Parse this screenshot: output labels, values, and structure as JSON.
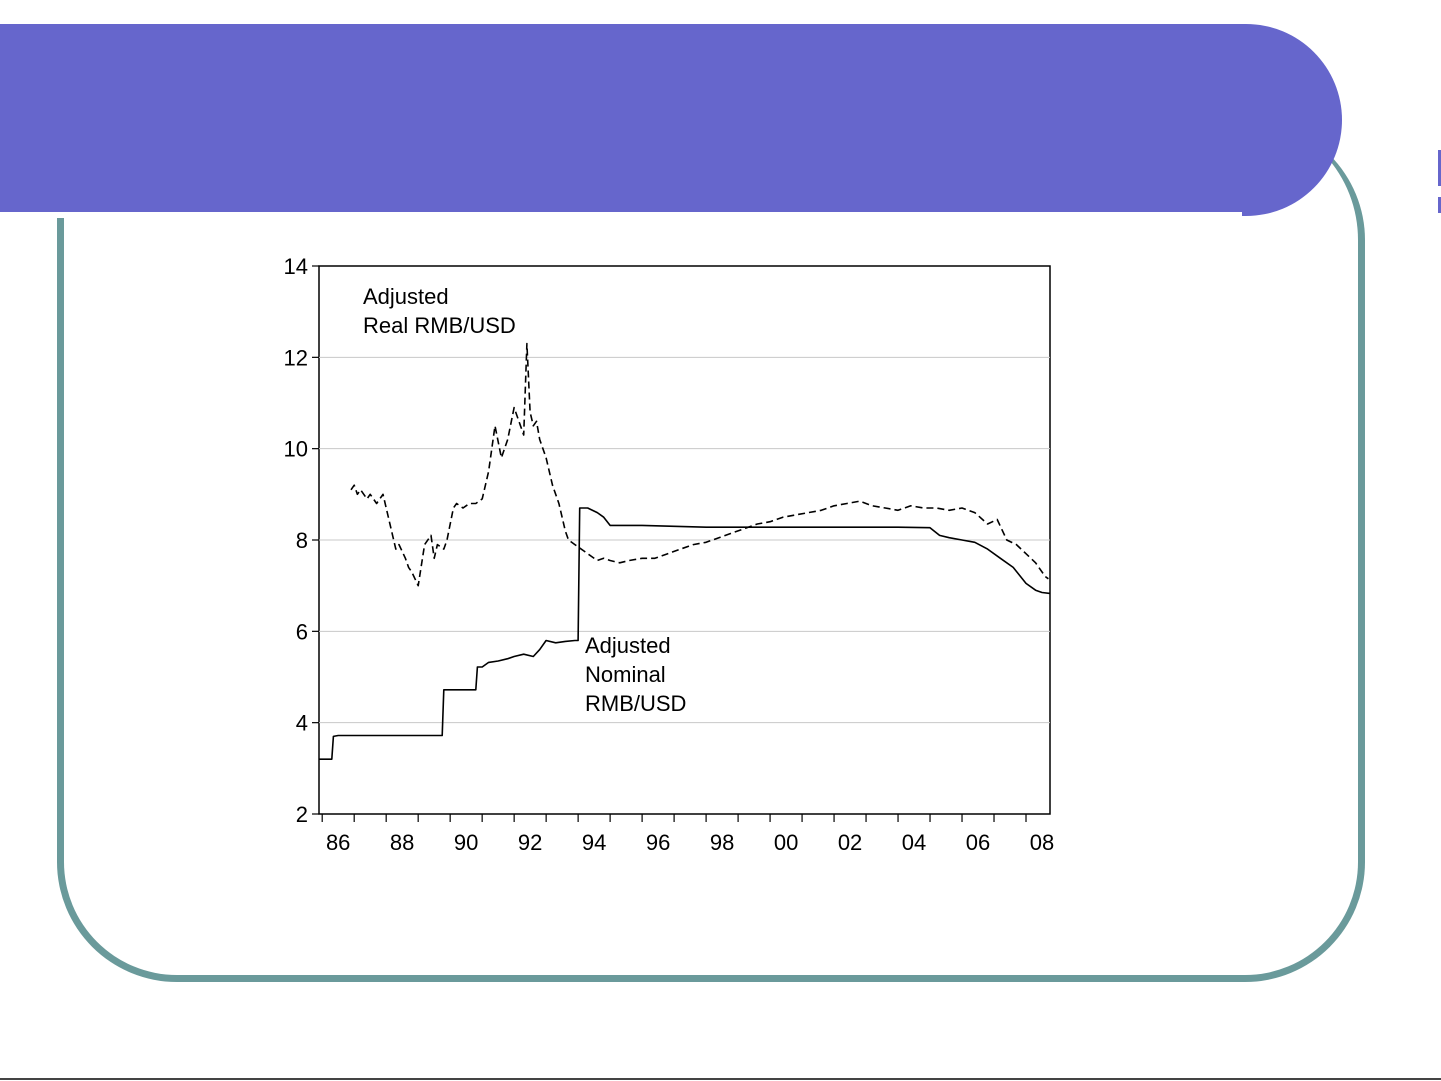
{
  "slide": {
    "banner_color": "#6666cc",
    "frame_color": "#6a9a9b"
  },
  "chart_data": {
    "type": "line",
    "ylim": [
      2,
      14
    ],
    "yticks": [
      "2",
      "4",
      "6",
      "8",
      "10",
      "12",
      "14"
    ],
    "xlim": [
      1985.9,
      2008.75
    ],
    "xticks": [
      {
        "label": "86",
        "year": 1986.5
      },
      {
        "label": "88",
        "year": 1988.5
      },
      {
        "label": "90",
        "year": 1990.5
      },
      {
        "label": "92",
        "year": 1992.5
      },
      {
        "label": "94",
        "year": 1994.5
      },
      {
        "label": "96",
        "year": 1996.5
      },
      {
        "label": "98",
        "year": 1998.5
      },
      {
        "label": "00",
        "year": 2000.5
      },
      {
        "label": "02",
        "year": 2002.5
      },
      {
        "label": "04",
        "year": 2004.5
      },
      {
        "label": "06",
        "year": 2006.5
      },
      {
        "label": "08",
        "year": 2008.5
      }
    ],
    "grid": true,
    "annotations": {
      "real_line1": "Adjusted",
      "real_line2": "Real RMB/USD",
      "nominal_line1": "Adjusted",
      "nominal_line2": "Nominal",
      "nominal_line3": "RMB/USD"
    },
    "series": [
      {
        "style": "dashed",
        "x": [
          1986.9,
          1987.0,
          1987.1,
          1987.2,
          1987.4,
          1987.5,
          1987.7,
          1987.9,
          1988.0,
          1988.2,
          1988.3,
          1988.4,
          1988.6,
          1988.7,
          1988.8,
          1989.0,
          1989.2,
          1989.4,
          1989.5,
          1989.6,
          1989.8,
          1989.9,
          1990.1,
          1990.2,
          1990.4,
          1990.6,
          1990.8,
          1991.0,
          1991.2,
          1991.4,
          1991.6,
          1991.8,
          1992.0,
          1992.2,
          1992.3,
          1992.4,
          1992.5,
          1992.6,
          1992.7,
          1992.8,
          1993.0,
          1993.2,
          1993.4,
          1993.5,
          1993.6,
          1993.7,
          1993.9,
          1994.0,
          1994.2,
          1994.4,
          1994.6,
          1994.8,
          1995.0,
          1995.3,
          1995.6,
          1996.0,
          1996.4,
          1996.8,
          1997.2,
          1997.6,
          1998.0,
          1998.4,
          1998.8,
          1999.2,
          1999.6,
          2000.0,
          2000.4,
          2000.8,
          2001.2,
          2001.6,
          2002.0,
          2002.4,
          2002.8,
          2003.2,
          2003.6,
          2004.0,
          2004.4,
          2004.8,
          2005.2,
          2005.6,
          2006.0,
          2006.4,
          2006.8,
          2007.1,
          2007.4,
          2007.7,
          2008.0,
          2008.3,
          2008.6,
          2008.7
        ],
        "y": [
          9.1,
          9.2,
          9.0,
          9.1,
          8.9,
          9.0,
          8.8,
          9.0,
          8.7,
          8.1,
          7.8,
          7.9,
          7.6,
          7.4,
          7.3,
          7.0,
          7.9,
          8.1,
          7.6,
          7.9,
          7.8,
          8.0,
          8.7,
          8.8,
          8.7,
          8.8,
          8.8,
          8.9,
          9.5,
          10.5,
          9.8,
          10.2,
          10.9,
          10.5,
          10.3,
          12.3,
          10.8,
          10.5,
          10.6,
          10.2,
          9.8,
          9.2,
          8.8,
          8.5,
          8.2,
          8.0,
          7.9,
          7.85,
          7.75,
          7.65,
          7.55,
          7.6,
          7.55,
          7.5,
          7.55,
          7.6,
          7.6,
          7.7,
          7.8,
          7.9,
          7.95,
          8.05,
          8.15,
          8.25,
          8.35,
          8.4,
          8.5,
          8.55,
          8.6,
          8.65,
          8.75,
          8.8,
          8.85,
          8.75,
          8.7,
          8.65,
          8.75,
          8.7,
          8.7,
          8.65,
          8.7,
          8.6,
          8.35,
          8.45,
          8.0,
          7.9,
          7.7,
          7.5,
          7.2,
          7.15
        ],
        "color": "#000000"
      },
      {
        "style": "solid",
        "x": [
          1985.9,
          1986.3,
          1986.35,
          1986.5,
          1987.0,
          1988.0,
          1989.0,
          1989.75,
          1989.8,
          1990.0,
          1990.5,
          1990.8,
          1990.85,
          1991.0,
          1991.2,
          1991.5,
          1991.8,
          1992.0,
          1992.3,
          1992.6,
          1992.8,
          1993.0,
          1993.3,
          1993.6,
          1993.9,
          1994.0,
          1994.05,
          1994.3,
          1994.6,
          1994.8,
          1995.0,
          1996.0,
          1997.0,
          1998.0,
          1999.0,
          2000.0,
          2001.0,
          2002.0,
          2003.0,
          2004.0,
          2005.0,
          2005.3,
          2005.6,
          2006.0,
          2006.4,
          2006.8,
          2007.2,
          2007.6,
          2008.0,
          2008.3,
          2008.5,
          2008.75
        ],
        "y": [
          3.2,
          3.2,
          3.7,
          3.72,
          3.72,
          3.72,
          3.72,
          3.72,
          4.72,
          4.72,
          4.72,
          4.72,
          5.22,
          5.22,
          5.32,
          5.35,
          5.4,
          5.45,
          5.5,
          5.45,
          5.6,
          5.8,
          5.75,
          5.78,
          5.8,
          5.8,
          8.7,
          8.7,
          8.6,
          8.5,
          8.32,
          8.32,
          8.3,
          8.28,
          8.28,
          8.28,
          8.28,
          8.28,
          8.28,
          8.28,
          8.27,
          8.1,
          8.05,
          8.0,
          7.95,
          7.8,
          7.6,
          7.4,
          7.05,
          6.9,
          6.85,
          6.83
        ],
        "color": "#000000"
      }
    ]
  }
}
